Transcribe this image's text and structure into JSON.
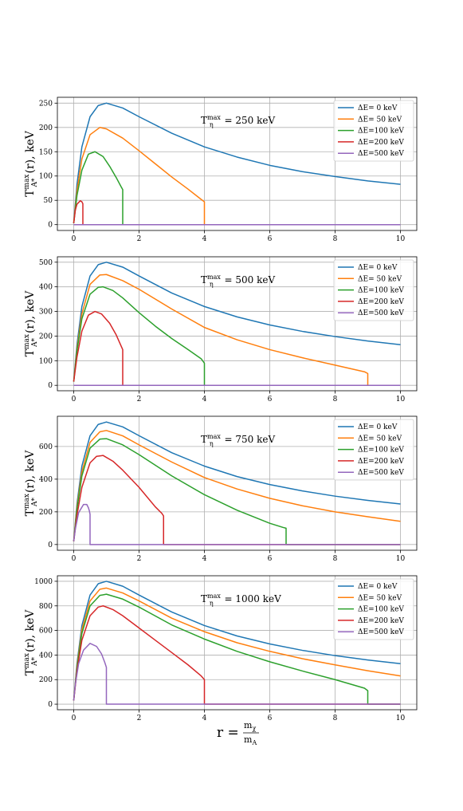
{
  "figure": {
    "xlabel": {
      "main": "r =",
      "num": "m",
      "num_sub": "χ",
      "den": "m",
      "den_sub": "A"
    }
  },
  "chart_data": [
    {
      "type": "line",
      "annotation": {
        "T": "T",
        "sup": "max",
        "sub": "η",
        "rest": " = 250 keV"
      },
      "ylabel": {
        "main": "T",
        "sup": "max",
        "sub": "A*",
        "rest": "(r), keV"
      },
      "xlim": [
        -0.5,
        10.5
      ],
      "ylim": [
        -12,
        262
      ],
      "xticks": [
        0,
        2,
        4,
        6,
        8,
        10
      ],
      "yticks": [
        0,
        50,
        100,
        150,
        200,
        250
      ],
      "legend": "top-right",
      "grid": true,
      "series": [
        {
          "name": "ΔE=  0 keV",
          "color": "#1f77b4",
          "x": [
            0,
            0.1,
            0.25,
            0.5,
            0.75,
            1,
            1.5,
            2,
            3,
            4,
            5,
            6,
            7,
            8,
            9,
            10
          ],
          "y": [
            3,
            83,
            160,
            222,
            245,
            250,
            240,
            222,
            188,
            160,
            139,
            122,
            109,
            99,
            90,
            83
          ]
        },
        {
          "name": "ΔE= 50 keV",
          "color": "#ff7f0e",
          "x": [
            0,
            0.1,
            0.25,
            0.5,
            0.8,
            1,
            1.5,
            2,
            2.5,
            3,
            3.5,
            3.9,
            4,
            4,
            10
          ],
          "y": [
            3,
            70,
            135,
            185,
            200,
            197,
            178,
            152,
            125,
            98,
            73,
            52,
            47,
            0,
            0
          ]
        },
        {
          "name": "ΔE=100 keV",
          "color": "#2ca02c",
          "x": [
            0,
            0.1,
            0.25,
            0.45,
            0.65,
            0.9,
            1.1,
            1.3,
            1.45,
            1.5,
            1.5,
            10
          ],
          "y": [
            3,
            60,
            112,
            145,
            150,
            140,
            120,
            97,
            78,
            72,
            0,
            0
          ]
        },
        {
          "name": "ΔE=200 keV",
          "color": "#d62728",
          "x": [
            0,
            0.05,
            0.1,
            0.2,
            0.25,
            0.28,
            0.28,
            10
          ],
          "y": [
            3,
            30,
            42,
            49,
            47,
            43,
            0,
            0
          ]
        },
        {
          "name": "ΔE=500 keV",
          "color": "#9467bd",
          "x": [
            0,
            10
          ],
          "y": [
            0,
            0
          ]
        }
      ]
    },
    {
      "type": "line",
      "annotation": {
        "T": "T",
        "sup": "max",
        "sub": "η",
        "rest": " = 500 keV"
      },
      "ylabel": {
        "main": "T",
        "sup": "max",
        "sub": "A*",
        "rest": "(r), keV"
      },
      "xlim": [
        -0.5,
        10.5
      ],
      "ylim": [
        -22,
        522
      ],
      "xticks": [
        0,
        2,
        4,
        6,
        8,
        10
      ],
      "yticks": [
        0,
        100,
        200,
        300,
        400,
        500
      ],
      "legend": "top-right",
      "grid": true,
      "series": [
        {
          "name": "ΔE=  0 keV",
          "color": "#1f77b4",
          "x": [
            0,
            0.1,
            0.25,
            0.5,
            0.75,
            1,
            1.5,
            2,
            3,
            4,
            5,
            6,
            7,
            8,
            9,
            10
          ],
          "y": [
            15,
            165,
            320,
            444,
            490,
            500,
            480,
            444,
            375,
            320,
            278,
            245,
            219,
            198,
            180,
            165
          ]
        },
        {
          "name": "ΔE= 50 keV",
          "color": "#ff7f0e",
          "x": [
            0,
            0.1,
            0.25,
            0.5,
            0.8,
            1,
            1.5,
            2,
            3,
            4,
            5,
            6,
            7,
            8,
            8.9,
            9,
            9,
            10
          ],
          "y": [
            15,
            150,
            290,
            410,
            448,
            450,
            425,
            390,
            310,
            235,
            185,
            145,
            112,
            82,
            55,
            48,
            0,
            0
          ]
        },
        {
          "name": "ΔE=100 keV",
          "color": "#2ca02c",
          "x": [
            0,
            0.1,
            0.25,
            0.5,
            0.75,
            0.9,
            1.2,
            1.5,
            2,
            2.5,
            3,
            3.5,
            3.9,
            4,
            4,
            10
          ],
          "y": [
            15,
            140,
            270,
            370,
            398,
            400,
            385,
            355,
            295,
            240,
            190,
            145,
            108,
            90,
            0,
            0
          ]
        },
        {
          "name": "ΔE=200 keV",
          "color": "#d62728",
          "x": [
            0,
            0.1,
            0.25,
            0.45,
            0.65,
            0.85,
            1.1,
            1.3,
            1.45,
            1.5,
            1.5,
            10
          ],
          "y": [
            15,
            115,
            220,
            285,
            300,
            290,
            252,
            205,
            160,
            145,
            0,
            0
          ]
        },
        {
          "name": "ΔE=500 keV",
          "color": "#9467bd",
          "x": [
            0,
            10
          ],
          "y": [
            0,
            0
          ]
        }
      ]
    },
    {
      "type": "line",
      "annotation": {
        "T": "T",
        "sup": "max",
        "sub": "η",
        "rest": " = 750 keV"
      },
      "ylabel": {
        "main": "T",
        "sup": "max",
        "sub": "A*",
        "rest": "(r), keV"
      },
      "xlim": [
        -0.5,
        10.5
      ],
      "ylim": [
        -35,
        785
      ],
      "xticks": [
        0,
        2,
        4,
        6,
        8,
        10
      ],
      "yticks": [
        0,
        200,
        400,
        600
      ],
      "legend": "top-right",
      "grid": true,
      "series": [
        {
          "name": "ΔE=  0 keV",
          "color": "#1f77b4",
          "x": [
            0,
            0.1,
            0.25,
            0.5,
            0.75,
            1,
            1.5,
            2,
            3,
            4,
            5,
            6,
            7,
            8,
            9,
            10
          ],
          "y": [
            20,
            248,
            480,
            666,
            735,
            750,
            720,
            666,
            562,
            480,
            416,
            367,
            328,
            296,
            270,
            248
          ]
        },
        {
          "name": "ΔE= 50 keV",
          "color": "#ff7f0e",
          "x": [
            0,
            0.1,
            0.25,
            0.5,
            0.8,
            1,
            1.5,
            2,
            3,
            4,
            5,
            6,
            7,
            8,
            9,
            10
          ],
          "y": [
            20,
            230,
            445,
            625,
            690,
            698,
            665,
            610,
            505,
            410,
            340,
            283,
            237,
            200,
            170,
            142
          ]
        },
        {
          "name": "ΔE=100 keV",
          "color": "#2ca02c",
          "x": [
            0,
            0.1,
            0.25,
            0.5,
            0.8,
            1,
            1.5,
            2,
            3,
            4,
            5,
            6,
            6.4,
            6.5,
            6.5,
            10
          ],
          "y": [
            20,
            215,
            420,
            590,
            645,
            648,
            610,
            550,
            420,
            305,
            210,
            130,
            105,
            100,
            0,
            0
          ]
        },
        {
          "name": "ΔE=200 keV",
          "color": "#d62728",
          "x": [
            0,
            0.1,
            0.25,
            0.5,
            0.7,
            0.9,
            1.2,
            1.5,
            2,
            2.5,
            2.7,
            2.75,
            2.75,
            10
          ],
          "y": [
            20,
            180,
            350,
            500,
            540,
            545,
            510,
            455,
            350,
            230,
            190,
            175,
            0,
            0
          ]
        },
        {
          "name": "ΔE=500 keV",
          "color": "#9467bd",
          "x": [
            0,
            0.05,
            0.15,
            0.3,
            0.4,
            0.45,
            0.48,
            0.5,
            0.5,
            10
          ],
          "y": [
            20,
            95,
            195,
            245,
            245,
            225,
            205,
            185,
            0,
            0
          ]
        }
      ]
    },
    {
      "type": "line",
      "annotation": {
        "T": "T",
        "sup": "max",
        "sub": "η",
        "rest": " = 1000 keV"
      },
      "ylabel": {
        "main": "T",
        "sup": "max",
        "sub": "A*",
        "rest": "(r), keV"
      },
      "xlim": [
        -0.5,
        10.5
      ],
      "ylim": [
        -45,
        1045
      ],
      "xticks": [
        0,
        2,
        4,
        6,
        8,
        10
      ],
      "yticks": [
        0,
        200,
        400,
        600,
        800,
        1000
      ],
      "legend": "top-right",
      "grid": true,
      "series": [
        {
          "name": "ΔE=  0 keV",
          "color": "#1f77b4",
          "x": [
            0,
            0.1,
            0.25,
            0.5,
            0.75,
            1,
            1.5,
            2,
            3,
            4,
            5,
            6,
            7,
            8,
            9,
            10
          ],
          "y": [
            30,
            330,
            640,
            888,
            980,
            1000,
            960,
            888,
            750,
            640,
            555,
            490,
            438,
            395,
            360,
            330
          ]
        },
        {
          "name": "ΔE= 50 keV",
          "color": "#ff7f0e",
          "x": [
            0,
            0.1,
            0.25,
            0.5,
            0.8,
            1,
            1.5,
            2,
            3,
            4,
            5,
            6,
            7,
            8,
            9,
            10
          ],
          "y": [
            30,
            310,
            605,
            840,
            935,
            945,
            905,
            840,
            700,
            590,
            500,
            430,
            370,
            320,
            272,
            230
          ]
        },
        {
          "name": "ΔE=100 keV",
          "color": "#2ca02c",
          "x": [
            0,
            0.1,
            0.25,
            0.5,
            0.8,
            1,
            1.5,
            2,
            3,
            4,
            5,
            6,
            7,
            8,
            8.9,
            9,
            9,
            10
          ],
          "y": [
            30,
            295,
            575,
            800,
            885,
            895,
            855,
            790,
            645,
            530,
            430,
            345,
            270,
            200,
            130,
            110,
            0,
            0
          ]
        },
        {
          "name": "ΔE=200 keV",
          "color": "#d62728",
          "x": [
            0,
            0.1,
            0.25,
            0.5,
            0.75,
            0.9,
            1.2,
            1.5,
            2,
            2.5,
            3,
            3.5,
            3.9,
            4,
            4,
            10
          ],
          "y": [
            30,
            270,
            520,
            720,
            790,
            800,
            770,
            720,
            620,
            520,
            420,
            320,
            230,
            200,
            0,
            0
          ]
        },
        {
          "name": "ΔE=500 keV",
          "color": "#9467bd",
          "x": [
            0,
            0.05,
            0.15,
            0.3,
            0.5,
            0.7,
            0.85,
            0.95,
            1.0,
            1.0,
            10
          ],
          "y": [
            30,
            160,
            330,
            440,
            495,
            470,
            410,
            340,
            300,
            0,
            0
          ]
        }
      ]
    }
  ]
}
